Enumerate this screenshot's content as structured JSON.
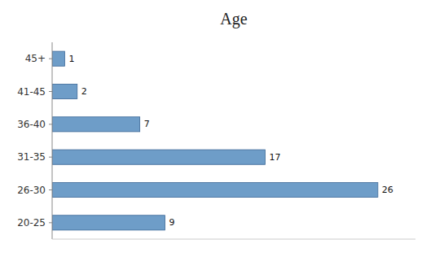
{
  "chart_data": {
    "type": "bar",
    "orientation": "horizontal",
    "title": "Age",
    "categories": [
      "20-25",
      "26-30",
      "31-35",
      "36-40",
      "41-45",
      "45+"
    ],
    "values": [
      9,
      26,
      17,
      7,
      2,
      1
    ],
    "color": "#6E9DC8",
    "xlim": [
      0,
      29
    ],
    "xticks": [],
    "data_labels": true,
    "tick_labels": "y",
    "grid": false
  }
}
